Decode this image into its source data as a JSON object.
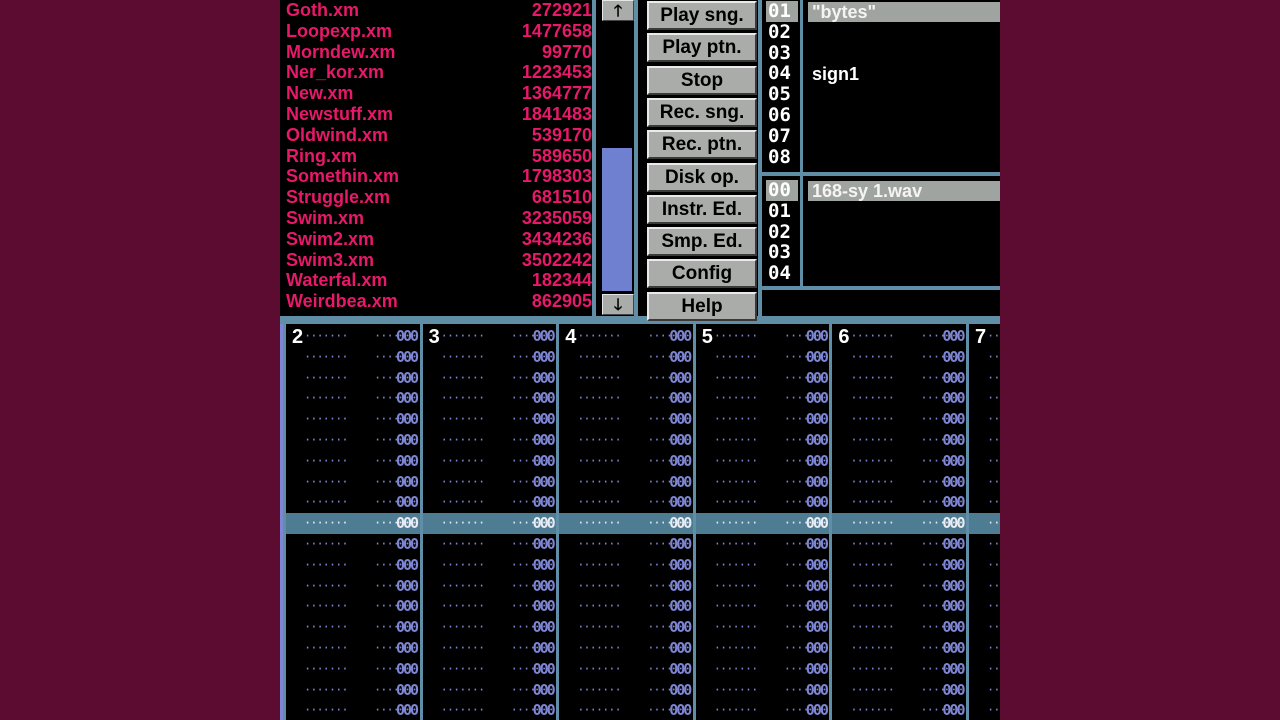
{
  "disk_op": {
    "files": [
      {
        "name": "Goth.xm",
        "size": "272921"
      },
      {
        "name": "Loopexp.xm",
        "size": "1477658"
      },
      {
        "name": "Morndew.xm",
        "size": "99770"
      },
      {
        "name": "Ner_kor.xm",
        "size": "1223453"
      },
      {
        "name": "New.xm",
        "size": "1364777"
      },
      {
        "name": "Newstuff.xm",
        "size": "1841483"
      },
      {
        "name": "Oldwind.xm",
        "size": "539170"
      },
      {
        "name": "Ring.xm",
        "size": "589650"
      },
      {
        "name": "Somethin.xm",
        "size": "1798303"
      },
      {
        "name": "Struggle.xm",
        "size": "681510"
      },
      {
        "name": "Swim.xm",
        "size": "3235059"
      },
      {
        "name": "Swim2.xm",
        "size": "3434236"
      },
      {
        "name": "Swim3.xm",
        "size": "3502242"
      },
      {
        "name": "Waterfal.xm",
        "size": "182344"
      },
      {
        "name": "Weirdbea.xm",
        "size": "862905"
      }
    ],
    "scroll_up_icon": "arrow-up",
    "scroll_down_icon": "arrow-down",
    "scroll_up_glyph": "🡑",
    "scroll_down_glyph": "🡓"
  },
  "menu": {
    "buttons": [
      "Play sng.",
      "Play ptn.",
      "Stop",
      "Rec. sng.",
      "Rec. ptn.",
      "Disk op.",
      "Instr. Ed.",
      "Smp. Ed.",
      "Config",
      "Help"
    ]
  },
  "instruments": {
    "numbers": [
      "01",
      "02",
      "03",
      "04",
      "05",
      "06",
      "07",
      "08"
    ],
    "names": [
      "\"bytes\"",
      "",
      "",
      "sign1",
      "",
      "",
      "",
      ""
    ],
    "selected": "01"
  },
  "samples": {
    "numbers": [
      "00",
      "01",
      "02",
      "03",
      "04"
    ],
    "names": [
      "168-sy 1.wav",
      "",
      "",
      "",
      ""
    ],
    "selected": "00"
  },
  "pattern": {
    "channels": [
      "2",
      "3",
      "4",
      "5",
      "6",
      "7"
    ],
    "empty_cell": {
      "note": "·······",
      "vol": "····",
      "fx": "000"
    },
    "visible_rows": 19,
    "current_row_index": 9
  },
  "colors": {
    "background": "#5c0c31",
    "file_text": "#e8186a",
    "frame": "#5f8ea6",
    "scroll_thumb": "#7080d0",
    "pattern_text": "#7e86d4",
    "cursor_row": "#4d7c93"
  }
}
